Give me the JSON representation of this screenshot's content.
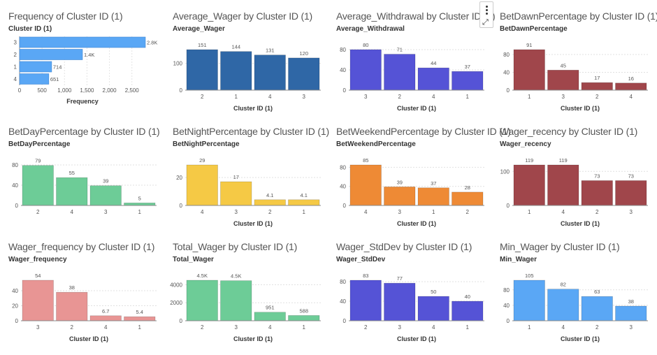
{
  "toolbar": {
    "menu_icon": "more-vertical-icon",
    "expand_icon": "expand-arrows-icon"
  },
  "chart_data": [
    {
      "id": "freq",
      "type": "bar",
      "orientation": "horizontal",
      "title": "Frequency of Cluster ID (1)",
      "ylabel": "Cluster ID (1)",
      "xlabel": "Frequency",
      "categories": [
        "3",
        "2",
        "1",
        "4"
      ],
      "values": [
        2800,
        1400,
        714,
        651
      ],
      "labels": [
        "2.8K",
        "1.4K",
        "714",
        "651"
      ],
      "xlim": [
        0,
        2800
      ],
      "ticks": [
        0,
        500,
        1000,
        1500,
        2000,
        2500
      ],
      "tick_labels": [
        "0",
        "500",
        "1,000",
        "1,500",
        "2,000",
        "2,500"
      ],
      "color": "#5aa7f5"
    },
    {
      "id": "avg-wager",
      "type": "bar",
      "title": "Average_Wager by Cluster ID (1)",
      "ylabel": "Average_Wager",
      "xlabel": "Cluster ID (1)",
      "categories": [
        "2",
        "1",
        "4",
        "3"
      ],
      "values": [
        151,
        144,
        131,
        120
      ],
      "labels": [
        "151",
        "144",
        "131",
        "120"
      ],
      "ylim": [
        0,
        151
      ],
      "ticks": [
        0,
        100
      ],
      "color": "#2f67a6"
    },
    {
      "id": "avg-withdrawal",
      "type": "bar",
      "title": "Average_Withdrawal by Cluster ID (1)",
      "ylabel": "Average_Withdrawal",
      "xlabel": "Cluster ID (1)",
      "categories": [
        "3",
        "2",
        "4",
        "1"
      ],
      "values": [
        80,
        71,
        44,
        37
      ],
      "labels": [
        "80",
        "71",
        "44",
        "37"
      ],
      "ylim": [
        0,
        80
      ],
      "ticks": [
        0,
        40,
        80
      ],
      "color": "#5553d6"
    },
    {
      "id": "bet-dawn",
      "type": "bar",
      "title": "BetDawnPercentage by Cluster ID (1)",
      "ylabel": "BetDawnPercentage",
      "xlabel": "Cluster ID (1)",
      "categories": [
        "1",
        "3",
        "2",
        "4"
      ],
      "values": [
        91,
        45,
        17,
        16
      ],
      "labels": [
        "91",
        "45",
        "17",
        "16"
      ],
      "ylim": [
        0,
        91
      ],
      "ticks": [
        0,
        40,
        80
      ],
      "color": "#a0464b"
    },
    {
      "id": "bet-day",
      "type": "bar",
      "title": "BetDayPercentage by Cluster ID (1)",
      "ylabel": "BetDayPercentage",
      "xlabel": "",
      "categories": [
        "2",
        "4",
        "3",
        "1"
      ],
      "values": [
        79,
        55,
        39,
        5
      ],
      "labels": [
        "79",
        "55",
        "39",
        "5"
      ],
      "ylim": [
        0,
        80
      ],
      "ticks": [
        0,
        40,
        80
      ],
      "color": "#6dcc97"
    },
    {
      "id": "bet-night",
      "type": "bar",
      "title": "BetNightPercentage by Cluster ID (1)",
      "ylabel": "BetNightPercentage",
      "xlabel": "Cluster ID (1)",
      "categories": [
        "4",
        "3",
        "2",
        "1"
      ],
      "values": [
        29,
        17,
        4.1,
        4.1
      ],
      "labels": [
        "29",
        "17",
        "4.1",
        "4.1"
      ],
      "ylim": [
        0,
        29
      ],
      "ticks": [
        0,
        20
      ],
      "color": "#f5c945"
    },
    {
      "id": "bet-weekend",
      "type": "bar",
      "title": "BetWeekendPercentage by Cluster ID (1)",
      "ylabel": "BetWeekendPercentage",
      "xlabel": "Cluster ID (1)",
      "categories": [
        "4",
        "3",
        "1",
        "2"
      ],
      "values": [
        85,
        39,
        37,
        28
      ],
      "labels": [
        "85",
        "39",
        "37",
        "28"
      ],
      "ylim": [
        0,
        85
      ],
      "ticks": [
        0,
        40,
        80
      ],
      "color": "#ee8a35"
    },
    {
      "id": "wager-recency",
      "type": "bar",
      "title": "Wager_recency by Cluster ID (1)",
      "ylabel": "Wager_recency",
      "xlabel": "Cluster ID (1)",
      "categories": [
        "1",
        "4",
        "2",
        "3"
      ],
      "values": [
        119,
        119,
        73,
        73
      ],
      "labels": [
        "119",
        "119",
        "73",
        "73"
      ],
      "ylim": [
        0,
        119
      ],
      "ticks": [
        0,
        100
      ],
      "color": "#a0464b"
    },
    {
      "id": "wager-frequency",
      "type": "bar",
      "title": "Wager_frequency by Cluster ID (1)",
      "ylabel": "Wager_frequency",
      "xlabel": "Cluster ID (1)",
      "categories": [
        "3",
        "2",
        "4",
        "1"
      ],
      "values": [
        54,
        38,
        6.7,
        5.4
      ],
      "labels": [
        "54",
        "38",
        "6.7",
        "5.4"
      ],
      "ylim": [
        0,
        54
      ],
      "ticks": [
        0,
        20,
        40
      ],
      "color": "#e89594"
    },
    {
      "id": "total-wager",
      "type": "bar",
      "title": "Total_Wager by Cluster ID (1)",
      "ylabel": "Total_Wager",
      "xlabel": "Cluster ID (1)",
      "categories": [
        "2",
        "3",
        "4",
        "1"
      ],
      "values": [
        4500,
        4450,
        951,
        588
      ],
      "labels": [
        "4.5K",
        "4.5K",
        "951",
        "588"
      ],
      "ylim": [
        0,
        4500
      ],
      "ticks": [
        0,
        2000,
        4000
      ],
      "color": "#6dcc97"
    },
    {
      "id": "wager-stddev",
      "type": "bar",
      "title": "Wager_StdDev by Cluster ID (1)",
      "ylabel": "Wager_StdDev",
      "xlabel": "Cluster ID (1)",
      "categories": [
        "2",
        "3",
        "4",
        "1"
      ],
      "values": [
        83,
        77,
        50,
        40
      ],
      "labels": [
        "83",
        "77",
        "50",
        "40"
      ],
      "ylim": [
        0,
        83
      ],
      "ticks": [
        0,
        40,
        80
      ],
      "color": "#5553d6"
    },
    {
      "id": "min-wager",
      "type": "bar",
      "title": "Min_Wager by Cluster ID (1)",
      "ylabel": "Min_Wager",
      "xlabel": "Cluster ID (1)",
      "categories": [
        "1",
        "4",
        "2",
        "3"
      ],
      "values": [
        105,
        82,
        63,
        38
      ],
      "labels": [
        "105",
        "82",
        "63",
        "38"
      ],
      "ylim": [
        0,
        105
      ],
      "ticks": [
        0,
        40,
        80
      ],
      "color": "#5aa7f5"
    }
  ]
}
